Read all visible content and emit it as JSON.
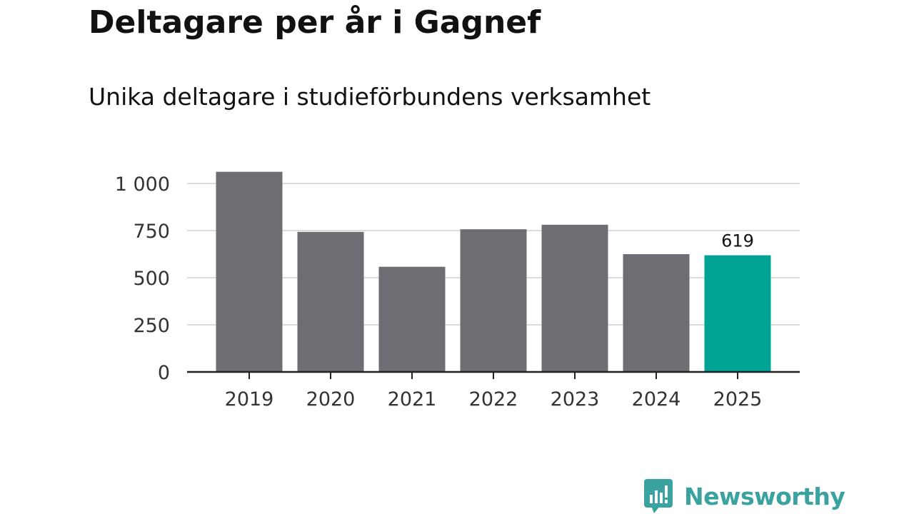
{
  "header": {
    "title": "Deltagare per år i Gagnef",
    "subtitle": "Unika deltagare i studieförbundens verksamhet"
  },
  "logo": {
    "text": "Newsworthy",
    "color": "#3aa3a0",
    "icon": "bar-chart-speech-bubble-icon"
  },
  "colors": {
    "bar": "#6e6d73",
    "highlight": "#00a396",
    "grid": "#dddddd",
    "axis": "#222222"
  },
  "chart_data": {
    "type": "bar",
    "title": "Deltagare per år i Gagnef",
    "subtitle": "Unika deltagare i studieförbundens verksamhet",
    "xlabel": "",
    "ylabel": "",
    "categories": [
      "2019",
      "2020",
      "2021",
      "2022",
      "2023",
      "2024",
      "2025"
    ],
    "values": [
      1062,
      743,
      558,
      757,
      781,
      625,
      619
    ],
    "highlight_index": 6,
    "highlight_label": "619",
    "ylim": [
      0,
      1100
    ],
    "yticks": [
      0,
      250,
      500,
      750,
      1000
    ],
    "ytick_labels": [
      "0",
      "250",
      "500",
      "750",
      "1 000"
    ],
    "grid": true,
    "legend": "none"
  }
}
